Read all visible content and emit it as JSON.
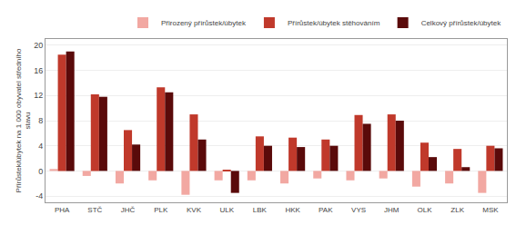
{
  "chart_data": {
    "type": "bar",
    "categories": [
      "PHA",
      "STČ",
      "JHČ",
      "PLK",
      "KVK",
      "ULK",
      "LBK",
      "HKK",
      "PAK",
      "VYS",
      "JHM",
      "OLK",
      "ZLK",
      "MSK"
    ],
    "series": [
      {
        "name": "Přirozený přírůstek/úbytek",
        "color": "#f2a8a2",
        "values": [
          0.3,
          -0.8,
          -2.0,
          -1.5,
          -3.8,
          -1.5,
          -1.5,
          -2.0,
          -1.2,
          -1.5,
          -1.2,
          -2.5,
          -2.0,
          -3.5
        ]
      },
      {
        "name": "Přírůstek/úbytek stěhováním",
        "color": "#c0392b",
        "values": [
          18.5,
          12.2,
          6.5,
          13.3,
          9.0,
          0.1,
          5.5,
          5.3,
          5.0,
          8.9,
          9.0,
          4.5,
          3.5,
          4.0
        ]
      },
      {
        "name": "Celkový přírůstek/úbytek",
        "color": "#5a0a0a",
        "values": [
          19.0,
          11.8,
          4.2,
          12.5,
          5.0,
          -3.5,
          4.0,
          3.8,
          4.0,
          7.5,
          8.0,
          2.2,
          0.6,
          3.6
        ]
      }
    ],
    "ylabel": "Přírůstek/úbytek na 1 000 obyvatel středního\nstavu",
    "ylim": [
      -5,
      21
    ],
    "yticks": [
      -4,
      0,
      4,
      8,
      12,
      16,
      20
    ],
    "grid": true,
    "legend": "upper right"
  }
}
